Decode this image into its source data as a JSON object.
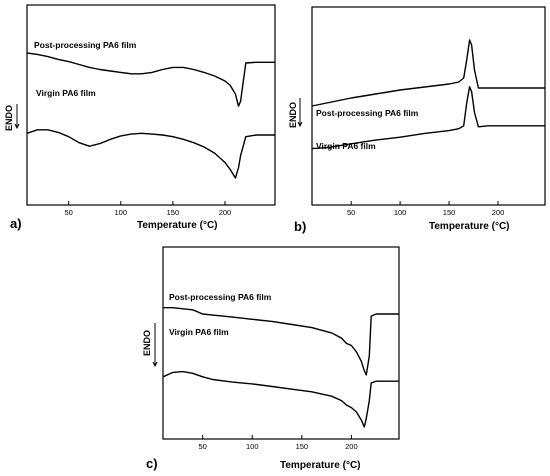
{
  "chart_data": [
    {
      "type": "line",
      "panel_label": "a)",
      "xlabel": "Temperature (°C)",
      "ylabel": "ENDO",
      "xlim": [
        10,
        248
      ],
      "ylim": [
        0,
        100
      ],
      "xticks": [
        50,
        100,
        150,
        200
      ],
      "x": [
        10,
        20,
        30,
        40,
        50,
        60,
        70,
        80,
        90,
        100,
        110,
        120,
        130,
        140,
        150,
        160,
        170,
        180,
        190,
        200,
        205,
        210,
        213,
        215,
        220,
        230,
        240,
        248
      ],
      "series": [
        {
          "name": "Post-processing PA6 film",
          "values": [
            82,
            80,
            77,
            73,
            70,
            66,
            62,
            59,
            57,
            55,
            53,
            53,
            55,
            59,
            62,
            62,
            59,
            55,
            50,
            43,
            37,
            25,
            8,
            15,
            68,
            69,
            69,
            69
          ]
        },
        {
          "name": "Virgin PA6 film",
          "values": [
            52,
            56,
            56,
            53,
            48,
            41,
            37,
            40,
            45,
            49,
            51,
            52,
            51,
            50,
            48,
            45,
            41,
            36,
            29,
            18,
            10,
            0,
            12,
            26,
            48,
            50,
            50,
            50
          ]
        }
      ]
    },
    {
      "type": "line",
      "panel_label": "b)",
      "xlabel": "Temperature (°C)",
      "ylabel": "ENDO",
      "xlim": [
        10,
        248
      ],
      "ylim": [
        0,
        100
      ],
      "xticks": [
        50,
        100,
        150,
        200
      ],
      "x": [
        10,
        25,
        50,
        75,
        100,
        125,
        150,
        160,
        165,
        168,
        171,
        173,
        176,
        180,
        190,
        200,
        220,
        248
      ],
      "series": [
        {
          "name": "Post-processing PA6 film",
          "values": [
            34,
            37,
            42,
            46,
            50,
            53,
            56,
            58,
            62,
            80,
            100,
            95,
            70,
            52,
            52,
            52,
            52,
            52
          ]
        },
        {
          "name": "Virgin PA6 film",
          "values": [
            12,
            13,
            17,
            21,
            24,
            28,
            31,
            33,
            36,
            60,
            77,
            72,
            50,
            35,
            36,
            36,
            36,
            36
          ]
        }
      ]
    },
    {
      "type": "line",
      "panel_label": "c)",
      "xlabel": "Temperature (°C)",
      "ylabel": "ENDO",
      "xlim": [
        10,
        248
      ],
      "ylim": [
        0,
        100
      ],
      "xticks": [
        50,
        100,
        150,
        200
      ],
      "x": [
        10,
        20,
        30,
        40,
        50,
        60,
        80,
        100,
        120,
        140,
        160,
        180,
        190,
        195,
        200,
        205,
        210,
        213,
        215,
        218,
        220,
        225,
        235,
        248
      ],
      "series": [
        {
          "name": "Post-processing PA6 film",
          "values": [
            86,
            86,
            85,
            84,
            80,
            79,
            77,
            75,
            73,
            70,
            67,
            62,
            57,
            52,
            50,
            44,
            35,
            26,
            22,
            40,
            78,
            80,
            80,
            80
          ]
        },
        {
          "name": "Virgin PA6 film",
          "values": [
            57,
            62,
            63,
            61,
            57,
            54,
            51,
            49,
            46,
            43,
            40,
            35,
            30,
            25,
            22,
            17,
            8,
            0,
            10,
            30,
            50,
            52,
            52,
            52
          ]
        }
      ]
    }
  ]
}
